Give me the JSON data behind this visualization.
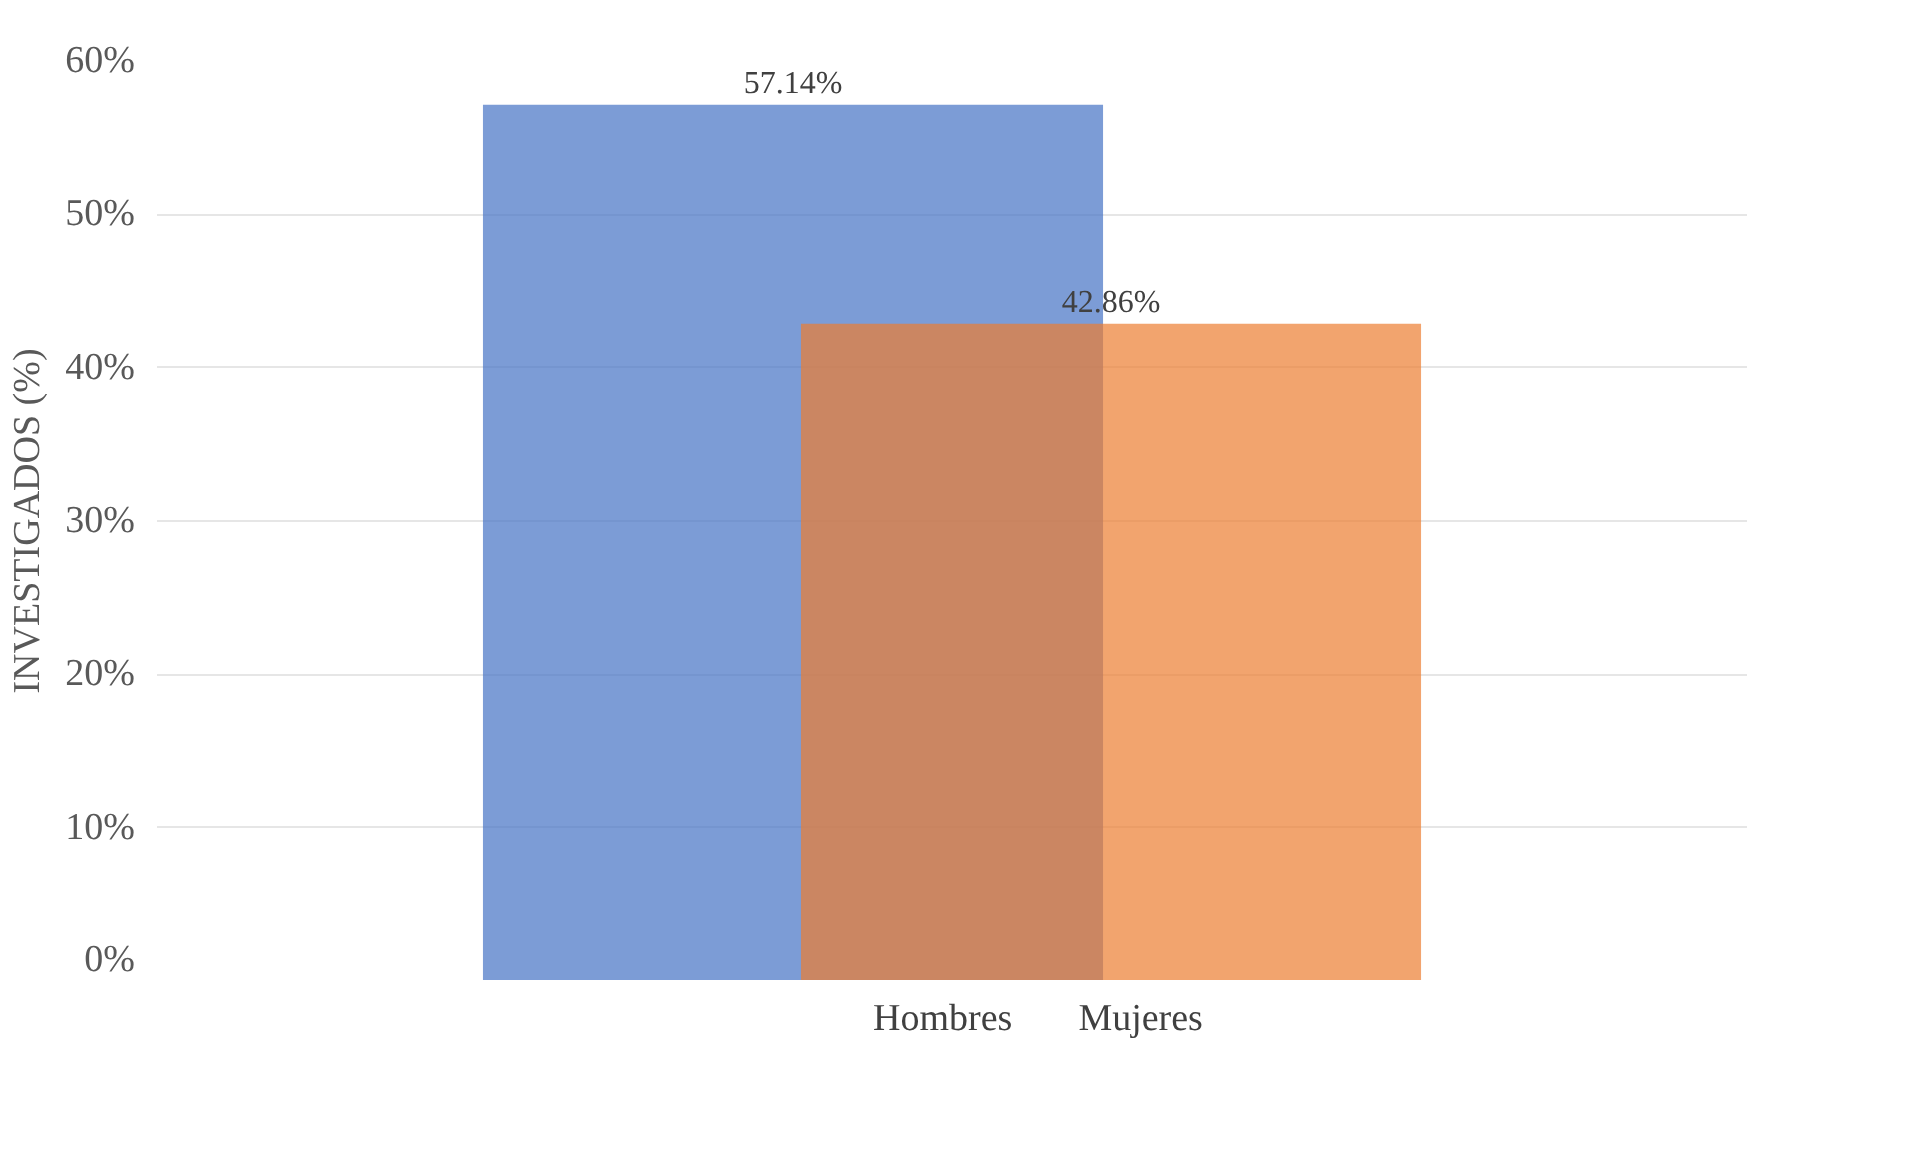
{
  "chart_data": {
    "type": "bar",
    "ylabel": "INVESTIGADOS (%)",
    "categories": [
      null
    ],
    "series": [
      {
        "name": "Hombres",
        "color": "#4472c4",
        "values": [
          57.14
        ],
        "value_labels": [
          "57.14%"
        ]
      },
      {
        "name": "Mujeres",
        "color": "#ed7d31",
        "values": [
          42.86
        ],
        "value_labels": [
          "42.86%"
        ]
      }
    ],
    "ylim": [
      0,
      60
    ],
    "yticks": [
      {
        "value": 0,
        "label": "0%"
      },
      {
        "value": 10,
        "label": "10%"
      },
      {
        "value": 20,
        "label": "20%"
      },
      {
        "value": 30,
        "label": "30%"
      },
      {
        "value": 40,
        "label": "40%"
      },
      {
        "value": 50,
        "label": "50%"
      },
      {
        "value": 60,
        "label": "60%"
      }
    ],
    "grid": "y",
    "legend": "bottom"
  }
}
